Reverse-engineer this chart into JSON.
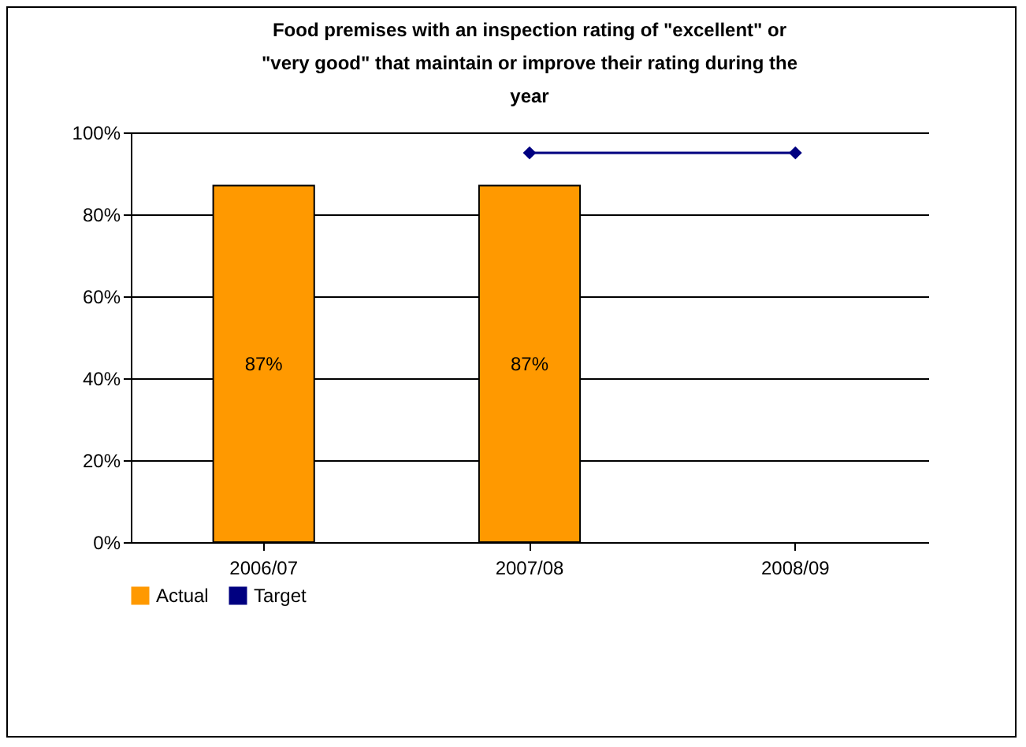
{
  "chart_data": {
    "type": "bar",
    "title": "Food premises with an inspection rating of \"excellent\" or \"very good\" that maintain or improve their rating during the year",
    "categories": [
      "2006/07",
      "2007/08",
      "2008/09"
    ],
    "series": [
      {
        "name": "Actual",
        "color": "#ff9900",
        "values": [
          87,
          87,
          null
        ],
        "value_labels": [
          "87%",
          "87%",
          null
        ]
      },
      {
        "name": "Target",
        "type": "line",
        "color": "#000080",
        "values": [
          null,
          95,
          95
        ],
        "marker": "diamond"
      }
    ],
    "ylim": [
      0,
      100
    ],
    "yticks": [
      {
        "value": 0,
        "label": "0%"
      },
      {
        "value": 20,
        "label": "20%"
      },
      {
        "value": 40,
        "label": "40%"
      },
      {
        "value": 60,
        "label": "60%"
      },
      {
        "value": 80,
        "label": "80%"
      },
      {
        "value": 100,
        "label": "100%"
      }
    ],
    "grid": "y",
    "legend": "bottom"
  }
}
